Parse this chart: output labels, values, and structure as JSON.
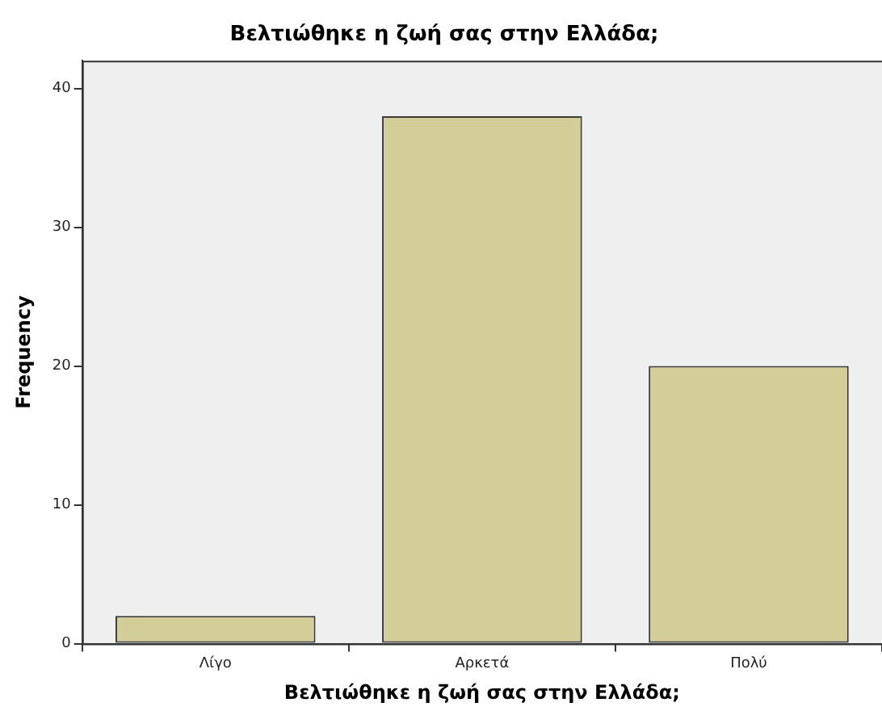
{
  "chart_data": {
    "type": "bar",
    "title": "Βελτιώθηκε η ζωή σας στην Ελλάδα;",
    "xlabel": "Βελτιώθηκε η ζωή σας στην Ελλάδα;",
    "ylabel": "Frequency",
    "categories": [
      "Λίγο",
      "Αρκετά",
      "Πολύ"
    ],
    "values": [
      2,
      38,
      20
    ],
    "color": "#d3ce97",
    "ylim": [
      0,
      42
    ],
    "yticks": [
      0,
      10,
      20,
      30,
      40
    ],
    "grid": false,
    "legend": false
  }
}
